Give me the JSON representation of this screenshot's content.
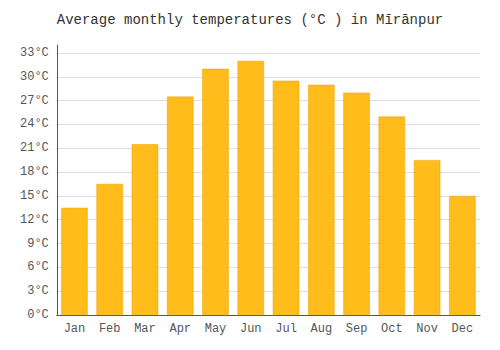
{
  "chart_data": {
    "type": "bar",
    "title": "Average monthly temperatures (°C ) in Mīrānpur",
    "categories": [
      "Jan",
      "Feb",
      "Mar",
      "Apr",
      "May",
      "Jun",
      "Jul",
      "Aug",
      "Sep",
      "Oct",
      "Nov",
      "Dec"
    ],
    "values": [
      13.5,
      16.5,
      21.5,
      27.5,
      31.0,
      32.0,
      29.5,
      29.0,
      28.0,
      25.0,
      19.5,
      15.0
    ],
    "color": "#FFBC1A",
    "ylim": [
      0,
      34
    ],
    "yticks": [
      {
        "value": 0,
        "label": "0°C"
      },
      {
        "value": 3,
        "label": "3°C"
      },
      {
        "value": 6,
        "label": "6°C"
      },
      {
        "value": 9,
        "label": "9°C"
      },
      {
        "value": 12,
        "label": "12°C"
      },
      {
        "value": 15,
        "label": "15°C"
      },
      {
        "value": 18,
        "label": "18°C"
      },
      {
        "value": 21,
        "label": "21°C"
      },
      {
        "value": 24,
        "label": "24°C"
      },
      {
        "value": 27,
        "label": "27°C"
      },
      {
        "value": 30,
        "label": "30°C"
      },
      {
        "value": 33,
        "label": "33°C"
      }
    ],
    "grid": true
  }
}
